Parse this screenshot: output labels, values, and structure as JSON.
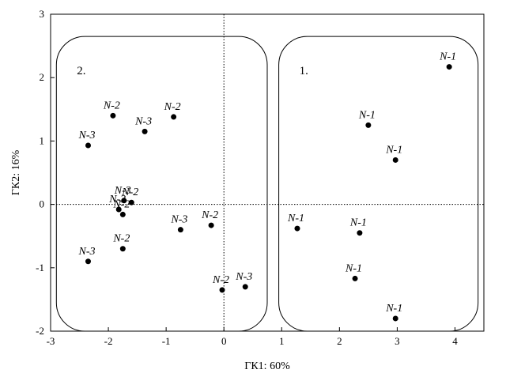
{
  "chart_data": {
    "type": "scatter",
    "title": "",
    "xlabel": "ГК1: 60%",
    "ylabel": "ГК2: 16%",
    "xlim": [
      -3,
      4.5
    ],
    "ylim": [
      -2,
      3
    ],
    "xticks": [
      -3,
      -2,
      -1,
      0,
      1,
      2,
      3,
      4
    ],
    "yticks": [
      -2,
      -1,
      0,
      1,
      2,
      3
    ],
    "tick_labels_x": [
      "-3",
      "-2",
      "-1",
      "0",
      "1",
      "2",
      "3",
      "4"
    ],
    "tick_labels_y": [
      "-2",
      "-1",
      "0",
      "1",
      "2",
      "3"
    ],
    "grid": false,
    "reference_lines": {
      "x": 0,
      "y": 0,
      "style": "dotted"
    },
    "groups": [
      {
        "label": "1.",
        "x_range": [
          0.95,
          4.4
        ],
        "y_range": [
          -2.0,
          2.65
        ]
      },
      {
        "label": "2.",
        "x_range": [
          -2.9,
          0.75
        ],
        "y_range": [
          -2.0,
          2.65
        ]
      }
    ],
    "points": [
      {
        "label": "N-1",
        "x": 3.9,
        "y": 2.17
      },
      {
        "label": "N-1",
        "x": 2.5,
        "y": 1.25
      },
      {
        "label": "N-1",
        "x": 2.97,
        "y": 0.7
      },
      {
        "label": "N-1",
        "x": 1.27,
        "y": -0.38
      },
      {
        "label": "N-1",
        "x": 2.35,
        "y": -0.45
      },
      {
        "label": "N-1",
        "x": 2.27,
        "y": -1.17
      },
      {
        "label": "N-1",
        "x": 2.97,
        "y": -1.8
      },
      {
        "label": "N-2",
        "x": -1.92,
        "y": 1.4
      },
      {
        "label": "N-2",
        "x": -0.87,
        "y": 1.38
      },
      {
        "label": "N-3",
        "x": -1.37,
        "y": 1.15
      },
      {
        "label": "N-3",
        "x": -2.35,
        "y": 0.93
      },
      {
        "label": "N-3",
        "x": -1.82,
        "y": -0.08
      },
      {
        "label": "N-3",
        "x": -1.73,
        "y": 0.06
      },
      {
        "label": "N-2",
        "x": -1.6,
        "y": 0.03
      },
      {
        "label": "N-2",
        "x": -1.75,
        "y": -0.16
      },
      {
        "label": "N-3",
        "x": -0.75,
        "y": -0.4
      },
      {
        "label": "N-2",
        "x": -0.22,
        "y": -0.33
      },
      {
        "label": "N-3",
        "x": -2.35,
        "y": -0.9
      },
      {
        "label": "N-2",
        "x": -1.75,
        "y": -0.7
      },
      {
        "label": "N-2",
        "x": -0.03,
        "y": -1.35
      },
      {
        "label": "N-3",
        "x": 0.37,
        "y": -1.3
      }
    ]
  }
}
